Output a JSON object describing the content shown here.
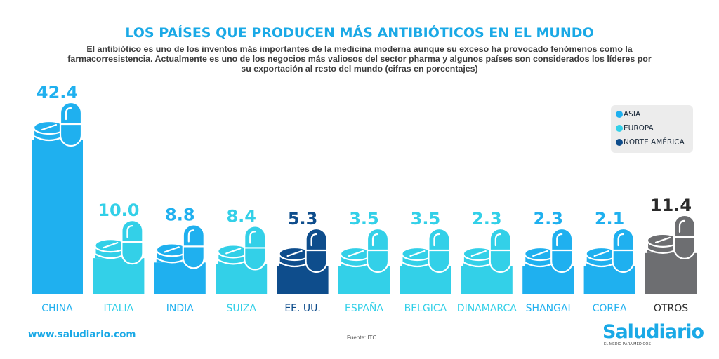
{
  "title": "LOS PAÍSES QUE PRODUCEN MÁS ANTIBIÓTICOS EN EL MUNDO",
  "subtitle": "El antibiótico es uno de los inventos más importantes de la medicina moderna aunque su exceso ha provocado fenómenos como la farmacorresistencia. Actualmente es uno de los negocios más valiosos del sector pharma y algunos países son considerados los líderes por su exportación al resto del mundo (cifras en porcentajes)",
  "legend": [
    {
      "label": "ASIA",
      "color": "#1fb0ef"
    },
    {
      "label": "EUROPA",
      "color": "#33d0e8"
    },
    {
      "label": "NORTE AMÉRICA",
      "color": "#0e4d8c"
    }
  ],
  "footer": {
    "url": "www.saludiario.com",
    "source": "Fuente: ITC",
    "brand": "Saludiario",
    "brand_tagline": "EL MEDIO PARA MÉDICOS"
  },
  "chart_data": {
    "type": "bar",
    "title": "LOS PAÍSES QUE PRODUCEN MÁS ANTIBIÓTICOS EN EL MUNDO",
    "categories": [
      "CHINA",
      "ITALIA",
      "INDIA",
      "SUIZA",
      "EE. UU.",
      "ESPAÑA",
      "BELGICA",
      "DINAMARCA",
      "SHANGAI",
      "COREA",
      "OTROS"
    ],
    "values": [
      42.4,
      10.0,
      8.8,
      8.4,
      5.3,
      3.5,
      3.5,
      2.3,
      2.3,
      2.1,
      11.4
    ],
    "labels": [
      "42.4",
      "10.0",
      "8.8",
      "8.4",
      "5.3",
      "3.5",
      "3.5",
      "2.3",
      "2.3",
      "2.1",
      "11.4"
    ],
    "regions": [
      "ASIA",
      "EUROPA",
      "ASIA",
      "EUROPA",
      "NORTE AMÉRICA",
      "EUROPA",
      "EUROPA",
      "EUROPA",
      "ASIA",
      "ASIA",
      "OTROS"
    ],
    "colors": [
      "#1fb0ef",
      "#33d0e8",
      "#1fb0ef",
      "#33d0e8",
      "#0e4d8c",
      "#33d0e8",
      "#33d0e8",
      "#33d0e8",
      "#1fb0ef",
      "#1fb0ef",
      "#6d6e71"
    ],
    "label_colors": [
      "#1fb0ef",
      "#33d0e8",
      "#1fb0ef",
      "#33d0e8",
      "#0e4d8c",
      "#33d0e8",
      "#33d0e8",
      "#33d0e8",
      "#1fb0ef",
      "#1fb0ef",
      "#2b2b2b"
    ],
    "ylim": [
      0,
      42.4
    ],
    "grid": false,
    "legend_position": "top-right"
  }
}
